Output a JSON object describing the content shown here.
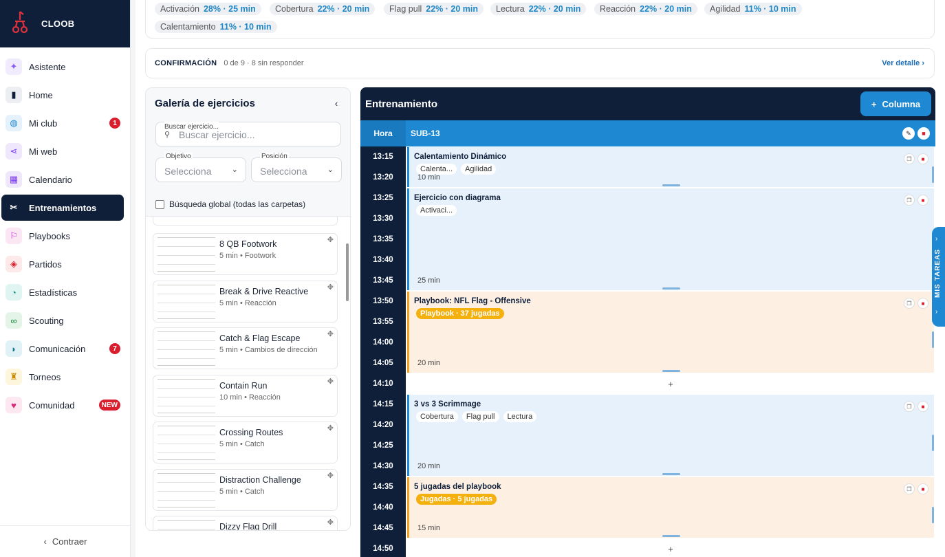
{
  "sidebar": {
    "brand": "CLOOB",
    "items": [
      {
        "label": "Asistente",
        "icon": "sparkle-icon",
        "color": "#8b5cf6",
        "bg": "#f1ebfe"
      },
      {
        "label": "Home",
        "icon": "bookmark-icon",
        "color": "#0f1f3a",
        "bg": "#eceef2"
      },
      {
        "label": "Mi club",
        "icon": "shirt-icon",
        "color": "#1e88d2",
        "bg": "#e5f1fb",
        "badge": "1"
      },
      {
        "label": "Mi web",
        "icon": "share-icon",
        "color": "#7c3aed",
        "bg": "#efe8fd"
      },
      {
        "label": "Calendario",
        "icon": "calendar-icon",
        "color": "#7c3aed",
        "bg": "#efe8fd"
      },
      {
        "label": "Entrenamientos",
        "icon": "drill-icon",
        "color": "#fff",
        "bg": "transparent"
      },
      {
        "label": "Playbooks",
        "icon": "play-icon",
        "color": "#c026d3",
        "bg": "#fbe7f3"
      },
      {
        "label": "Partidos",
        "icon": "football-icon",
        "color": "#d91e2e",
        "bg": "#fde8ea"
      },
      {
        "label": "Estadísticas",
        "icon": "pie-icon",
        "color": "#0d9488",
        "bg": "#e0f4f1"
      },
      {
        "label": "Scouting",
        "icon": "binoculars-icon",
        "color": "#15803d",
        "bg": "#e4f5e8"
      },
      {
        "label": "Comunicación",
        "icon": "chat-icon",
        "color": "#0e7490",
        "bg": "#e0f2f6",
        "badge": "7"
      },
      {
        "label": "Torneos",
        "icon": "trophy-icon",
        "color": "#ca8a04",
        "bg": "#fdf5dc"
      },
      {
        "label": "Comunidad",
        "icon": "heart-icon",
        "color": "#db2777",
        "bg": "#fde7f1",
        "badge": "NEW"
      }
    ],
    "collapse_label": "Contraer"
  },
  "stats": {
    "chips": [
      {
        "label": "Activación",
        "value": "28% · 25 min"
      },
      {
        "label": "Cobertura",
        "value": "22% · 20 min"
      },
      {
        "label": "Flag pull",
        "value": "22% · 20 min"
      },
      {
        "label": "Lectura",
        "value": "22% · 20 min"
      },
      {
        "label": "Reacción",
        "value": "22% · 20 min"
      },
      {
        "label": "Agilidad",
        "value": "11% · 10 min"
      },
      {
        "label": "Calentamiento",
        "value": "11% · 10 min"
      }
    ]
  },
  "confirmation": {
    "title": "CONFIRMACIÓN",
    "summary": "0 de 9 · 8 sin responder",
    "link": "Ver detalle"
  },
  "gallery": {
    "title": "Galería de ejercicios",
    "search_label": "Buscar ejercicio...",
    "search_placeholder": "Buscar ejercicio...",
    "objective_label": "Objetivo",
    "objective_value": "Selecciona",
    "position_label": "Posición",
    "position_value": "Selecciona",
    "global_search_label": "Búsqueda global (todas las carpetas)",
    "exercises": [
      {
        "name": "8 QB Footwork",
        "meta": "5 min • Footwork"
      },
      {
        "name": "Break & Drive Reactive",
        "meta": "5 min • Reacción"
      },
      {
        "name": "Catch & Flag Escape",
        "meta": "5 min • Cambios de dirección"
      },
      {
        "name": "Contain Run",
        "meta": "10 min • Reacción"
      },
      {
        "name": "Crossing Routes",
        "meta": "5 min • Catch"
      },
      {
        "name": "Distraction Challenge",
        "meta": "5 min • Catch"
      },
      {
        "name": "Dizzy Flag Drill",
        "meta": ""
      }
    ]
  },
  "board": {
    "title": "Entrenamiento",
    "add_column": "Columna",
    "hora_header": "Hora",
    "column_name": "SUB-13",
    "times": [
      "13:15",
      "13:20",
      "13:25",
      "13:30",
      "13:35",
      "13:40",
      "13:45",
      "13:50",
      "13:55",
      "14:00",
      "14:05",
      "14:10",
      "14:15",
      "14:20",
      "14:25",
      "14:30",
      "14:35",
      "14:40",
      "14:45",
      "14:50"
    ],
    "blocks": [
      {
        "title": "Calentamiento Dinámico",
        "tags": [
          "Calenta...",
          "Agilidad"
        ],
        "duration": "10 min",
        "style": "blue"
      },
      {
        "title": "Ejercicio con diagrama",
        "tags": [
          "Activaci..."
        ],
        "duration": "25 min",
        "style": "blue"
      },
      {
        "title": "Playbook: NFL Flag - Offensive",
        "tags": [
          "Playbook · 37 jugadas"
        ],
        "duration": "20 min",
        "style": "orange"
      },
      {
        "title": "3 vs 3 Scrimmage",
        "tags": [
          "Cobertura",
          "Flag pull",
          "Lectura"
        ],
        "duration": "20 min",
        "style": "blue"
      },
      {
        "title": "5 jugadas del playbook",
        "tags": [
          "Jugadas · 5 jugadas"
        ],
        "duration": "15 min",
        "style": "orange"
      }
    ],
    "add_symbol": "+"
  },
  "tasks_tab": "MIS TAREAS"
}
